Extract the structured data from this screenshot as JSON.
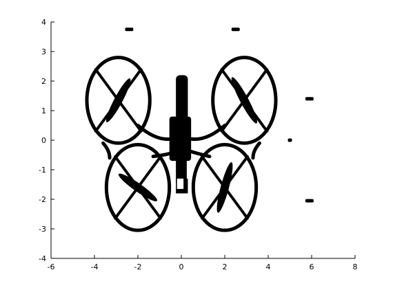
{
  "chart_data": {
    "type": "scatter",
    "title": "",
    "xlabel": "",
    "ylabel": "",
    "xlim": [
      -6,
      8
    ],
    "ylim": [
      -4,
      4
    ],
    "xticks": [
      -6,
      -4,
      -2,
      0,
      2,
      4,
      6,
      8
    ],
    "yticks": [
      -4,
      -3,
      -2,
      -1,
      0,
      1,
      2,
      3,
      4
    ],
    "grid": false,
    "legend": "none",
    "color": "#000000",
    "shape": {
      "rotor_centers": [
        [
          -2.9,
          1.35
        ],
        [
          2.9,
          1.35
        ],
        [
          -2.0,
          -1.6
        ],
        [
          2.0,
          -1.6
        ]
      ],
      "rotor_radius": 1.45,
      "body": {
        "x_min": -0.6,
        "x_max": 0.5,
        "y_min": -1.8,
        "y_max": 2.2
      }
    },
    "scattered_marks": [
      [
        -2.4,
        3.75
      ],
      [
        2.5,
        3.75
      ],
      [
        5.9,
        1.4
      ],
      [
        5.0,
        0.0
      ],
      [
        5.9,
        -2.05
      ]
    ]
  }
}
